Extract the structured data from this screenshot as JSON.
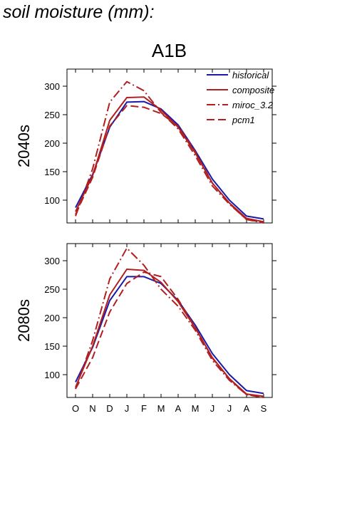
{
  "page": {
    "title": "soil moisture (mm):",
    "scenario": "A1B"
  },
  "chart_data": {
    "type": "line",
    "x_categories": [
      "O",
      "N",
      "D",
      "J",
      "F",
      "M",
      "A",
      "M",
      "J",
      "J",
      "A",
      "S"
    ],
    "ylim": [
      60,
      330
    ],
    "yticks": [
      100,
      150,
      200,
      250,
      300
    ],
    "grid": false,
    "legend_position": "top-right",
    "legend": [
      {
        "name": "historical",
        "color": "#1a1aaa",
        "dash": "solid"
      },
      {
        "name": "composite",
        "color": "#b02020",
        "dash": "solid"
      },
      {
        "name": "miroc_3.2",
        "color": "#b02020",
        "dash": "dashdot"
      },
      {
        "name": "pcm1",
        "color": "#b02020",
        "dash": "dashed"
      }
    ],
    "panels": [
      {
        "label": "2040s",
        "series": [
          {
            "name": "historical",
            "values": [
              87,
              145,
              228,
              272,
              273,
              260,
              232,
              187,
              137,
              100,
              72,
              67
            ]
          },
          {
            "name": "composite",
            "values": [
              80,
              143,
              240,
              280,
              281,
              258,
              228,
              183,
              130,
              95,
              68,
              62
            ]
          },
          {
            "name": "miroc_3.2",
            "values": [
              72,
              155,
              272,
              308,
              292,
              254,
              225,
              178,
              125,
              93,
              66,
              60
            ]
          },
          {
            "name": "pcm1",
            "values": [
              75,
              140,
              230,
              266,
              263,
              252,
              230,
              185,
              130,
              94,
              66,
              61
            ]
          }
        ]
      },
      {
        "label": "2080s",
        "series": [
          {
            "name": "historical",
            "values": [
              87,
              148,
              230,
              272,
              272,
              260,
              230,
              187,
              137,
              100,
              72,
              67
            ]
          },
          {
            "name": "composite",
            "values": [
              78,
              150,
              240,
              285,
              283,
              262,
              228,
              182,
              130,
              93,
              66,
              62
            ]
          },
          {
            "name": "miroc_3.2",
            "values": [
              75,
              160,
              268,
              322,
              292,
              250,
              220,
              178,
              125,
              90,
              65,
              60
            ]
          },
          {
            "name": "pcm1",
            "values": [
              75,
              130,
              210,
              260,
              280,
              272,
              232,
              183,
              129,
              92,
              65,
              60
            ]
          }
        ]
      }
    ]
  }
}
